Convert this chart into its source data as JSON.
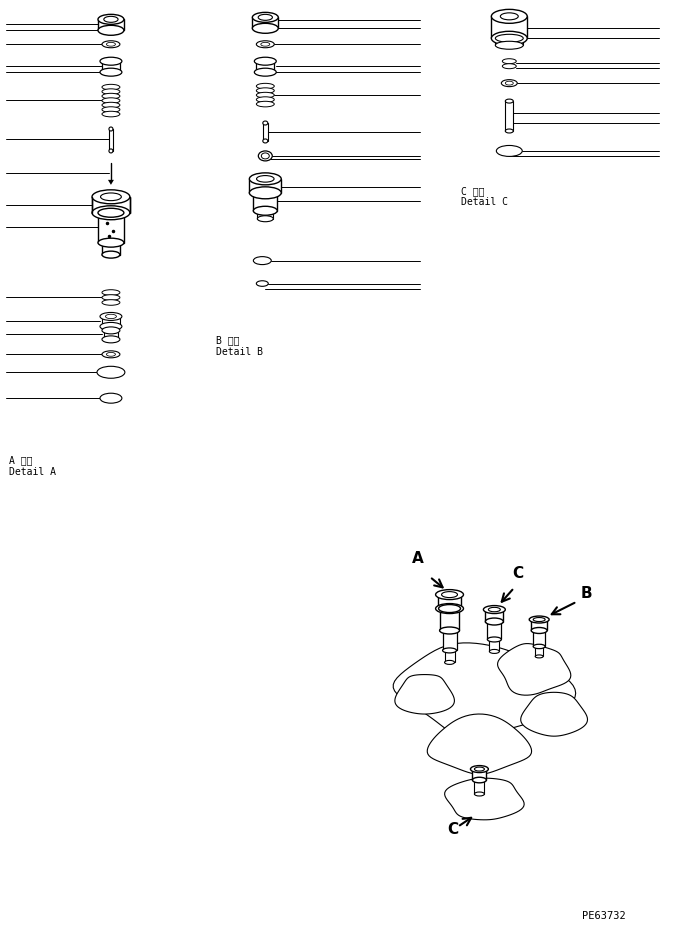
{
  "bg_color": "#ffffff",
  "line_color": "#000000",
  "detail_A_label": "A 詳細\nDetail A",
  "detail_B_label": "B 詳細\nDetail B",
  "detail_C_label": "C 詳細\nDetail C",
  "part_code": "PE63732",
  "fig_width": 6.76,
  "fig_height": 9.25
}
